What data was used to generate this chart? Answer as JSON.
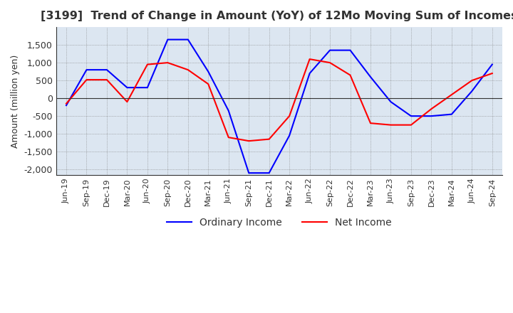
{
  "title": "[3199]  Trend of Change in Amount (YoY) of 12Mo Moving Sum of Incomes",
  "ylabel": "Amount (million yen)",
  "ylim": [
    -2150,
    2000
  ],
  "yticks": [
    -2000,
    -1500,
    -1000,
    -500,
    0,
    500,
    1000,
    1500
  ],
  "background_color": "#ffffff",
  "plot_bg_color": "#dce6f1",
  "grid_color": "#7f7f7f",
  "x_labels": [
    "Jun-19",
    "Sep-19",
    "Dec-19",
    "Mar-20",
    "Jun-20",
    "Sep-20",
    "Dec-20",
    "Mar-21",
    "Jun-21",
    "Sep-21",
    "Dec-21",
    "Mar-22",
    "Jun-22",
    "Sep-22",
    "Dec-22",
    "Mar-23",
    "Jun-23",
    "Sep-23",
    "Dec-23",
    "Mar-24",
    "Jun-24",
    "Sep-24"
  ],
  "ordinary_income": [
    -200,
    800,
    800,
    300,
    300,
    1650,
    1650,
    750,
    -350,
    -2100,
    -2100,
    -1050,
    700,
    1350,
    1350,
    600,
    -100,
    -500,
    -500,
    -450,
    200,
    950
  ],
  "net_income": [
    -150,
    520,
    520,
    -100,
    950,
    1000,
    800,
    400,
    -1100,
    -1200,
    -1150,
    -500,
    1100,
    1000,
    650,
    -700,
    -750,
    -750,
    -300,
    100,
    500,
    700
  ],
  "ordinary_color": "#0000ff",
  "net_color": "#ff0000",
  "line_width": 1.5
}
